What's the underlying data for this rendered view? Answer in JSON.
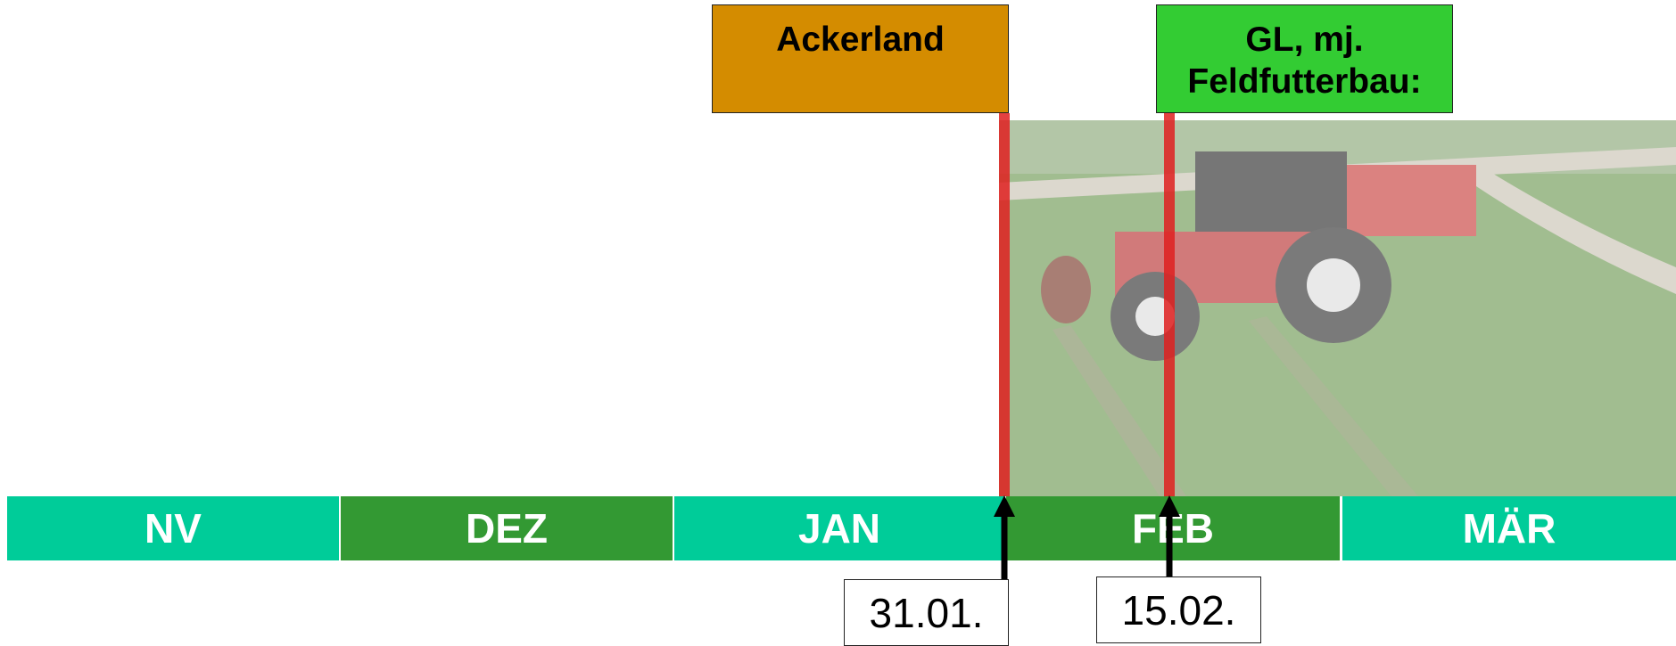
{
  "headers": {
    "ackerland": "Ackerland",
    "gl": [
      "GL, mj.",
      "Feldfutterbau:"
    ]
  },
  "months": [
    "NV",
    "DEZ",
    "JAN",
    "FEB",
    "MÄR"
  ],
  "dates": [
    "31.01.",
    "15.02."
  ]
}
